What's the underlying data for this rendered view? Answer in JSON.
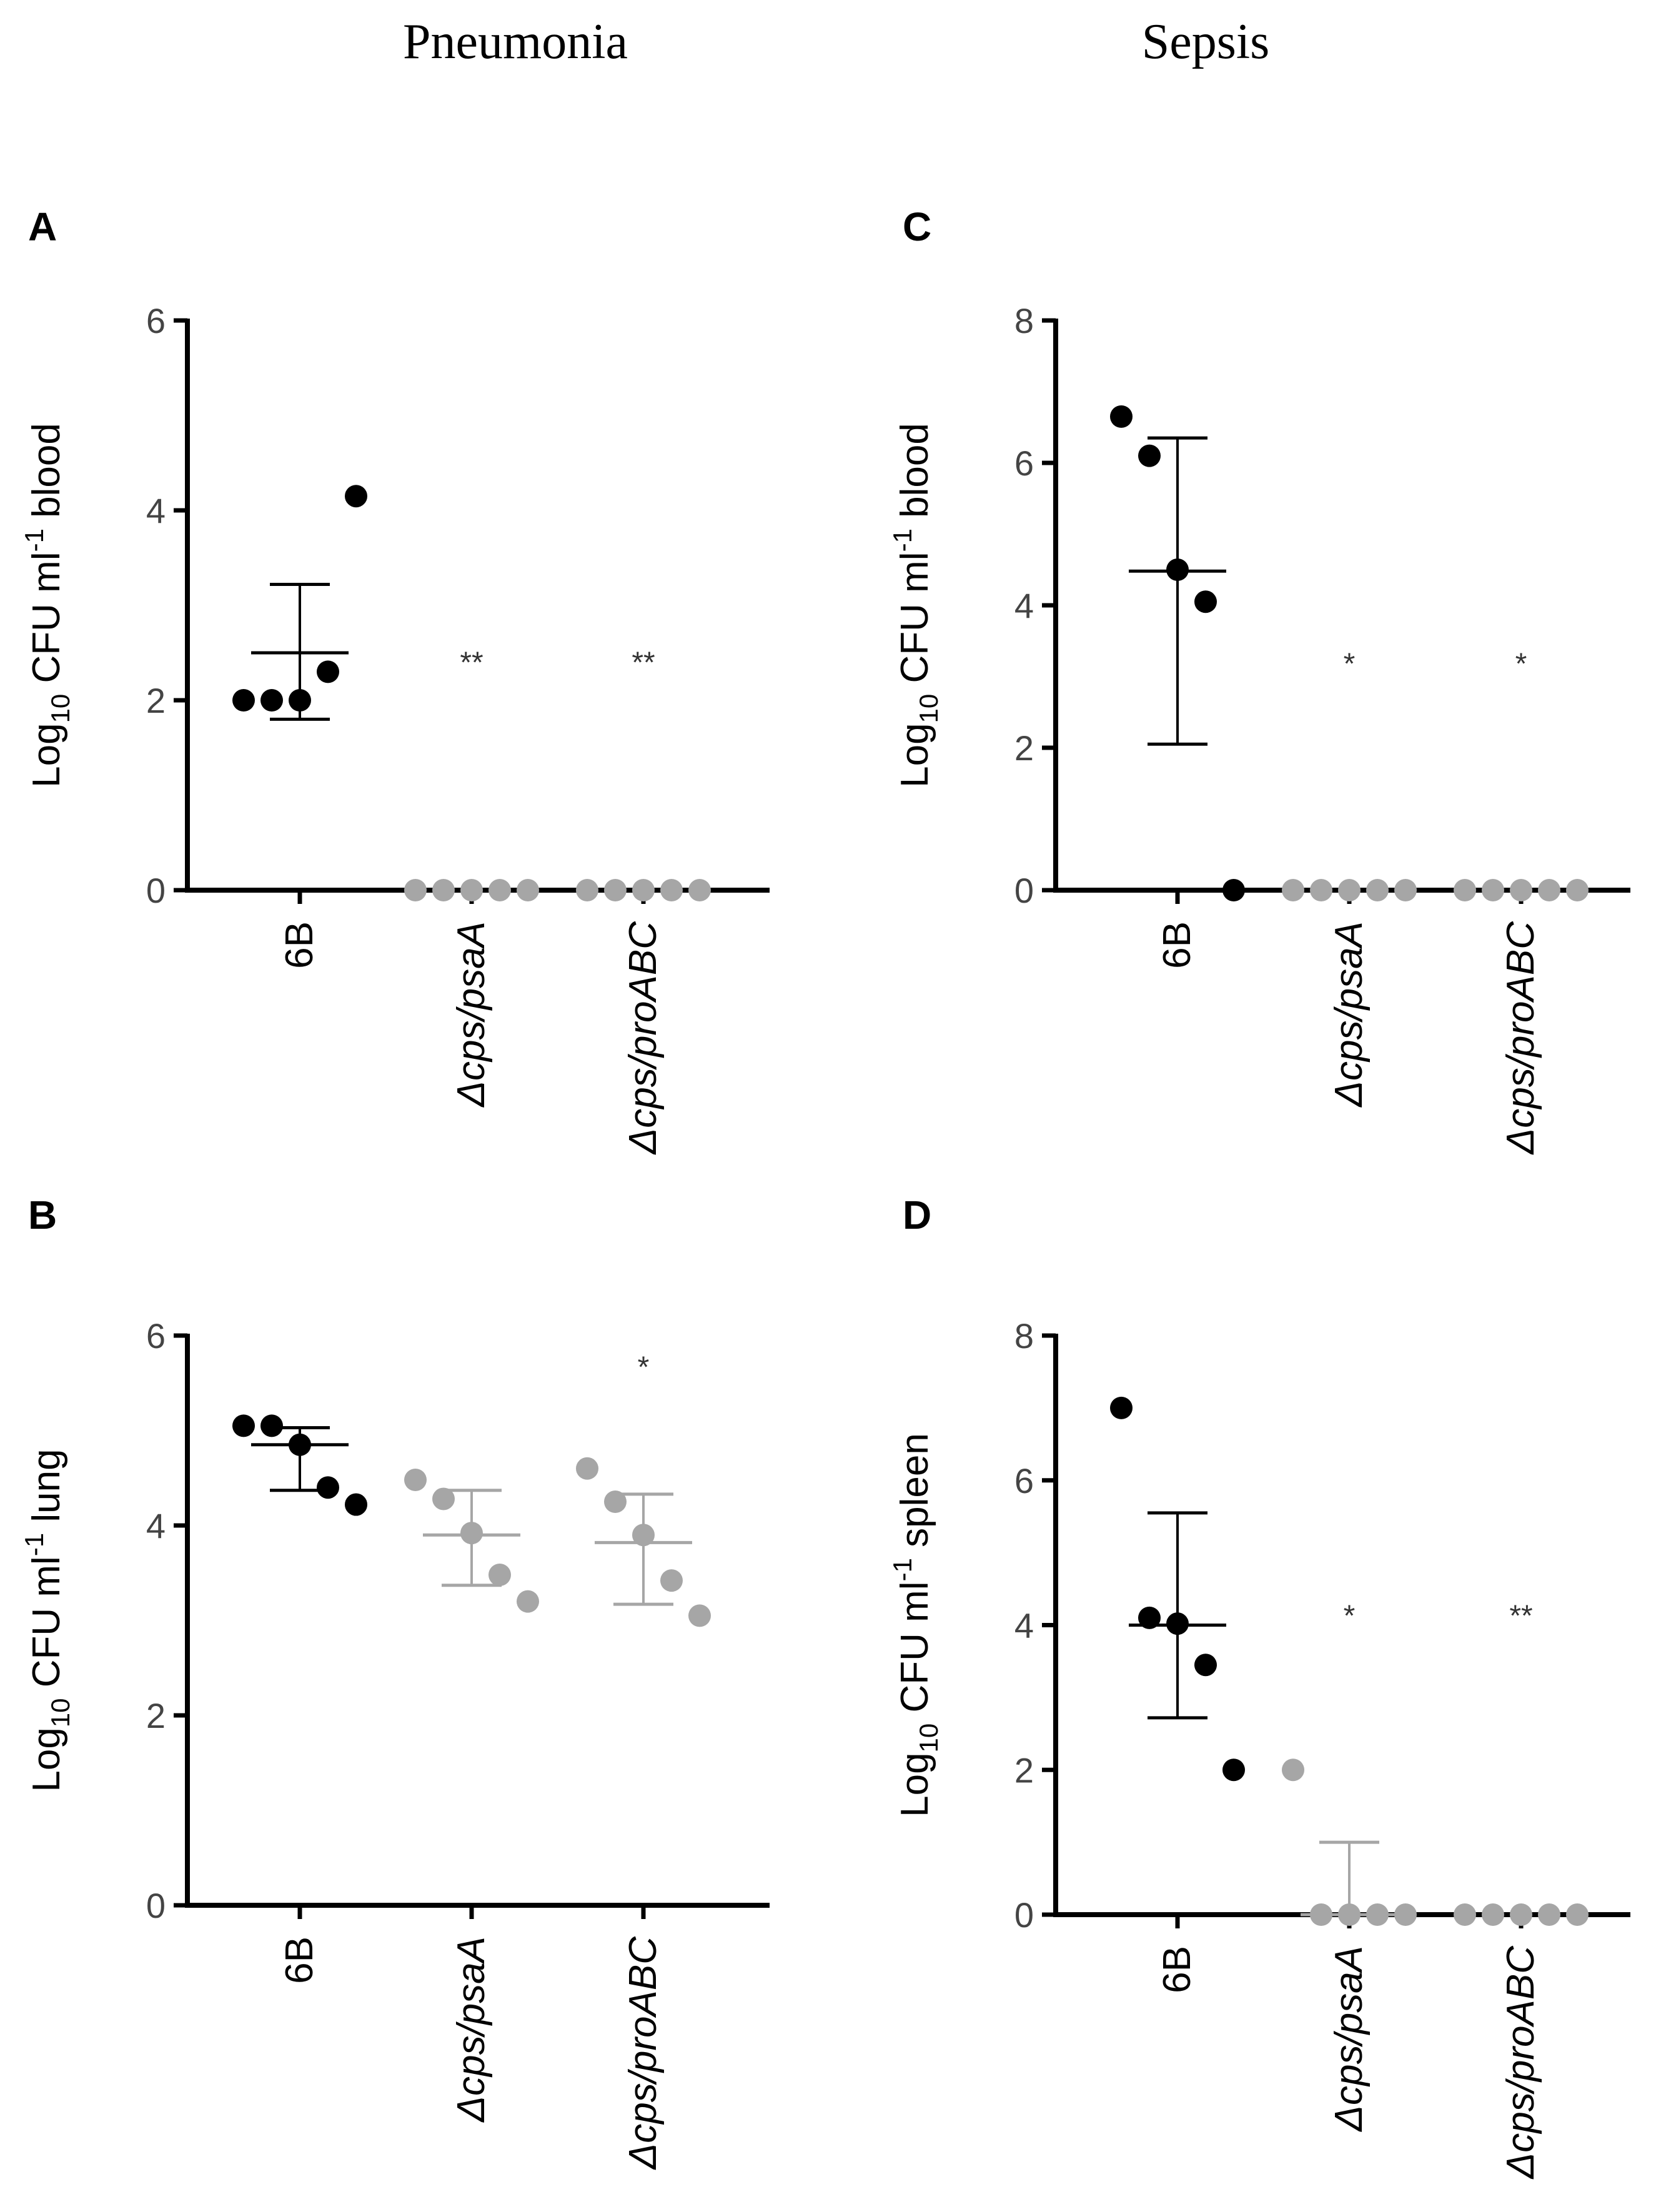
{
  "column_headers": [
    "Pneumonia",
    "Sepsis"
  ],
  "chart_data": [
    {
      "panel": "A",
      "type": "scatter",
      "title": "",
      "ylabel": {
        "prefix": "Log",
        "sub": "10",
        "mid": " CFU ml",
        "sup": "-1",
        "suffix": " blood"
      },
      "ylim": [
        0,
        6
      ],
      "yticks": [
        0,
        2,
        4,
        6
      ],
      "categories": [
        "6B",
        "Δcps/psaA",
        "Δcps/proABC"
      ],
      "category_italic": [
        false,
        true,
        true
      ],
      "series": [
        {
          "name": "6B",
          "color": "#000000",
          "points": [
            2,
            2,
            2,
            2.3,
            4.15
          ],
          "mean": 2.5,
          "sd_low": 1.8,
          "sd_high": 3.22
        },
        {
          "name": "Δcps/psaA",
          "color": "#a6a6a6",
          "points": [
            0,
            0,
            0,
            0,
            0
          ],
          "significance": "**"
        },
        {
          "name": "Δcps/proABC",
          "color": "#a6a6a6",
          "points": [
            0,
            0,
            0,
            0,
            0
          ],
          "significance": "**"
        }
      ]
    },
    {
      "panel": "B",
      "type": "scatter",
      "title": "",
      "ylabel": {
        "prefix": "Log",
        "sub": "10",
        "mid": " CFU ml",
        "sup": "-1",
        "suffix": " lung"
      },
      "ylim": [
        0,
        6
      ],
      "yticks": [
        0,
        2,
        4,
        6
      ],
      "categories": [
        "6B",
        "Δcps/psaA",
        "Δcps/proABC"
      ],
      "category_italic": [
        false,
        true,
        true
      ],
      "series": [
        {
          "name": "6B",
          "color": "#000000",
          "points": [
            5.05,
            5.05,
            4.85,
            4.4,
            4.22
          ],
          "mean": 4.85,
          "sd_low": 4.37,
          "sd_high": 5.03
        },
        {
          "name": "Δcps/psaA",
          "color": "#a6a6a6",
          "points": [
            4.48,
            4.28,
            3.92,
            3.48,
            3.2
          ],
          "mean": 3.9,
          "sd_low": 3.37,
          "sd_high": 4.37
        },
        {
          "name": "Δcps/proABC",
          "color": "#a6a6a6",
          "points": [
            4.6,
            4.25,
            3.9,
            3.42,
            3.05
          ],
          "mean": 3.82,
          "sd_low": 3.17,
          "sd_high": 4.33,
          "significance": "*"
        }
      ]
    },
    {
      "panel": "C",
      "type": "scatter",
      "title": "",
      "ylabel": {
        "prefix": "Log",
        "sub": "10",
        "mid": " CFU ml",
        "sup": "-1",
        "suffix": " blood"
      },
      "ylim": [
        0,
        8
      ],
      "yticks": [
        0,
        2,
        4,
        6,
        8
      ],
      "categories": [
        "6B",
        "Δcps/psaA",
        "Δcps/proABC"
      ],
      "category_italic": [
        false,
        true,
        true
      ],
      "series": [
        {
          "name": "6B",
          "color": "#000000",
          "points": [
            6.65,
            6.1,
            4.5,
            4.05,
            0
          ],
          "mean": 4.48,
          "sd_low": 2.05,
          "sd_high": 6.35
        },
        {
          "name": "Δcps/psaA",
          "color": "#a6a6a6",
          "points": [
            0,
            0,
            0,
            0,
            0
          ],
          "significance": "*"
        },
        {
          "name": "Δcps/proABC",
          "color": "#a6a6a6",
          "points": [
            0,
            0,
            0,
            0,
            0
          ],
          "significance": "*"
        }
      ]
    },
    {
      "panel": "D",
      "type": "scatter",
      "title": "",
      "ylabel": {
        "prefix": "Log",
        "sub": "10",
        "mid": " CFU ml",
        "sup": "-1",
        "suffix": " spleen"
      },
      "ylim": [
        0,
        8
      ],
      "yticks": [
        0,
        2,
        4,
        6,
        8
      ],
      "categories": [
        "6B",
        "Δcps/psaA",
        "Δcps/proABC"
      ],
      "category_italic": [
        false,
        true,
        true
      ],
      "series": [
        {
          "name": "6B",
          "color": "#000000",
          "points": [
            7.0,
            4.1,
            4.02,
            3.45,
            2.0
          ],
          "mean": 4.0,
          "sd_low": 2.72,
          "sd_high": 5.55
        },
        {
          "name": "Δcps/psaA",
          "color": "#a6a6a6",
          "points": [
            2.0,
            0,
            0,
            0,
            0
          ],
          "mean": 0,
          "sd_low": 0,
          "sd_high": 1.0,
          "significance": "*"
        },
        {
          "name": "Δcps/proABC",
          "color": "#a6a6a6",
          "points": [
            0,
            0,
            0,
            0,
            0
          ],
          "significance": "**"
        }
      ]
    }
  ]
}
